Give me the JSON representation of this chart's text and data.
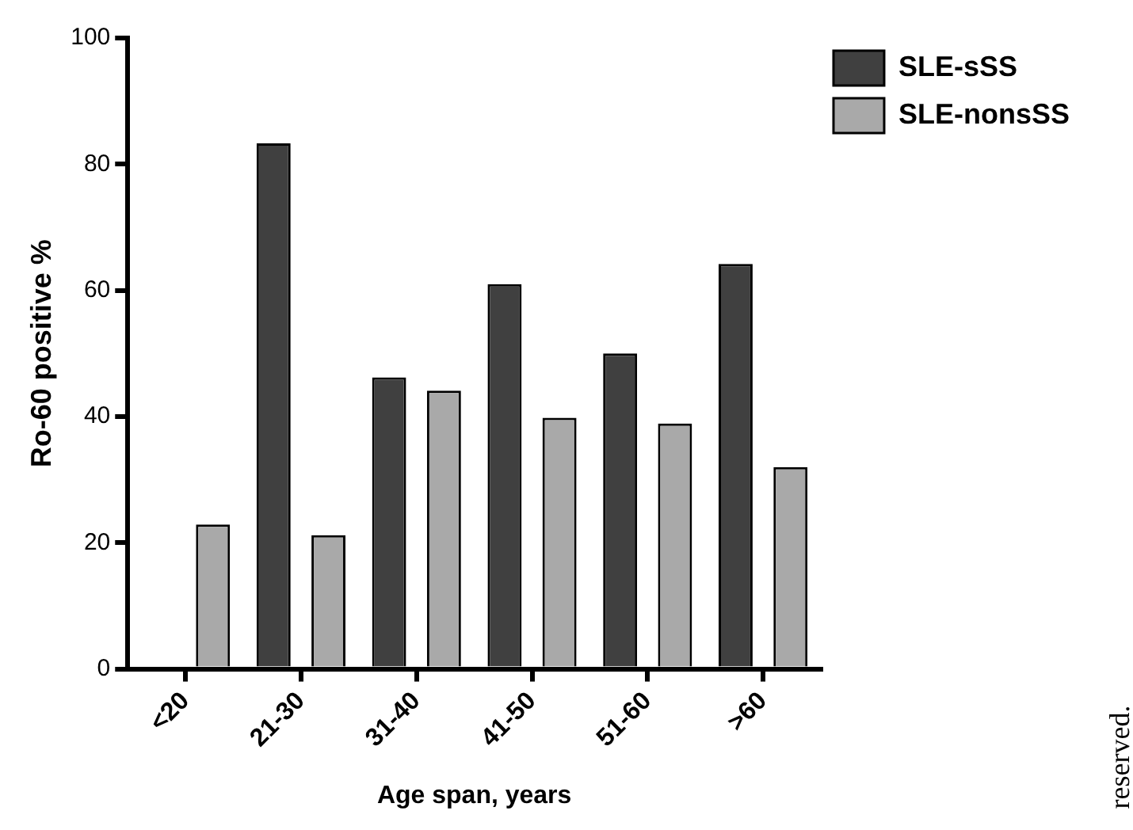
{
  "chart_data": {
    "type": "bar",
    "xlabel": "Age span, years",
    "ylabel": "Ro-60 positive %",
    "categories": [
      "<20",
      "21-30",
      "31-40",
      "41-50",
      "51-60",
      ">60"
    ],
    "series": [
      {
        "name": "SLE-sSS",
        "color": "#404040",
        "values": [
          0,
          83.3,
          46.2,
          61,
          50,
          64.2
        ]
      },
      {
        "name": "SLE-nonsSS",
        "color": "#a9a9a9",
        "values": [
          22.9,
          21.2,
          44.1,
          39.8,
          38.9,
          32
        ]
      }
    ],
    "ylim": [
      0,
      100
    ],
    "yticks": [
      0,
      20,
      40,
      60,
      80,
      100
    ],
    "grid": false,
    "legend": "top right",
    "annotations": [
      "reserved."
    ]
  }
}
